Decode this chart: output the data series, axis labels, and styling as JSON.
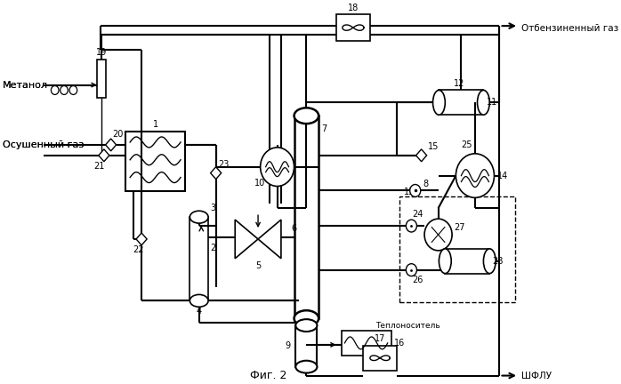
{
  "bg_color": "#ffffff",
  "fig_label": "Фиг. 2",
  "label_metanol": "Метанол",
  "label_gas": "Осушенный газ",
  "label_output_gas": "Отбензиненный газ",
  "label_heat": "Теплоноситель",
  "label_ngl": "ШФЛУ"
}
